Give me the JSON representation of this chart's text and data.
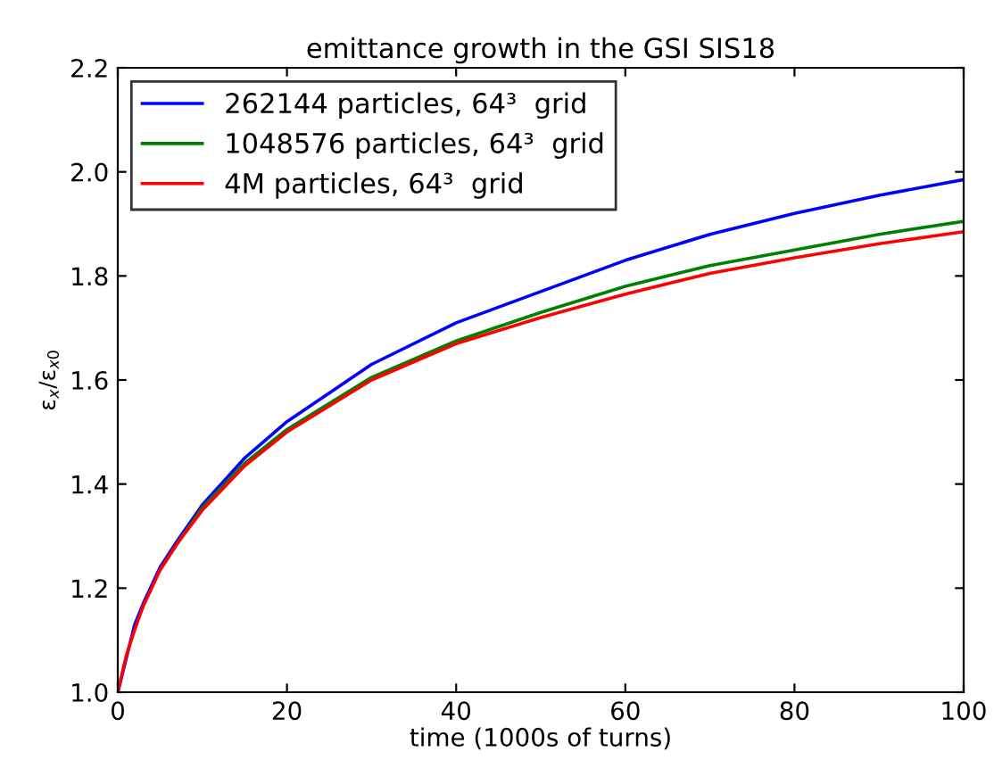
{
  "chart_data": {
    "type": "line",
    "title": "emittance growth in the GSI SIS18",
    "xlabel": "time (1000s of turns)",
    "ylabel": "ε$_{x}$/ε$_{x0}$",
    "x": [
      0,
      1,
      2,
      3,
      5,
      7,
      10,
      15,
      20,
      30,
      40,
      50,
      60,
      70,
      80,
      90,
      100
    ],
    "series": [
      {
        "name": "262144 particles, 64³  grid",
        "color": "#0000ff",
        "x": [
          0,
          2,
          3,
          5,
          7,
          10,
          15,
          20,
          30,
          40,
          50,
          60,
          70,
          80,
          90,
          100
        ],
        "values": [
          1.0,
          1.13,
          1.17,
          1.24,
          1.29,
          1.36,
          1.45,
          1.52,
          1.63,
          1.71,
          1.77,
          1.83,
          1.88,
          1.92,
          1.955,
          1.985
        ]
      },
      {
        "name": "1048576 particles, 64³  grid",
        "color": "#008000",
        "values": [
          null,
          null,
          null,
          null,
          1.235,
          1.285,
          1.355,
          1.44,
          1.505,
          1.605,
          1.675,
          1.73,
          1.78,
          1.82,
          1.85,
          1.88,
          1.905
        ]
      },
      {
        "name": "4M particles, 64³  grid",
        "color": "#ff0000",
        "values": [
          1.0,
          1.07,
          1.12,
          1.165,
          1.235,
          1.285,
          1.35,
          1.435,
          1.5,
          1.6,
          1.67,
          1.72,
          1.765,
          1.805,
          1.835,
          1.862,
          1.885
        ]
      }
    ],
    "xlim": [
      0,
      100
    ],
    "xticks": [
      0,
      20,
      40,
      60,
      80,
      100
    ],
    "ylim": [
      1.0,
      2.2
    ],
    "yticks": [
      {
        "value": 1.0,
        "label": "1.0"
      },
      {
        "value": 1.2,
        "label": "1.2"
      },
      {
        "value": 1.4,
        "label": "1.4"
      },
      {
        "value": 1.6,
        "label": "1.6"
      },
      {
        "value": 1.8,
        "label": "1.8"
      },
      {
        "value": 2.0,
        "label": "2.0"
      },
      {
        "value": 2.2,
        "label": "2.2"
      }
    ],
    "legend": "top left",
    "grid": false,
    "marker": "none",
    "line_style": "solid"
  }
}
